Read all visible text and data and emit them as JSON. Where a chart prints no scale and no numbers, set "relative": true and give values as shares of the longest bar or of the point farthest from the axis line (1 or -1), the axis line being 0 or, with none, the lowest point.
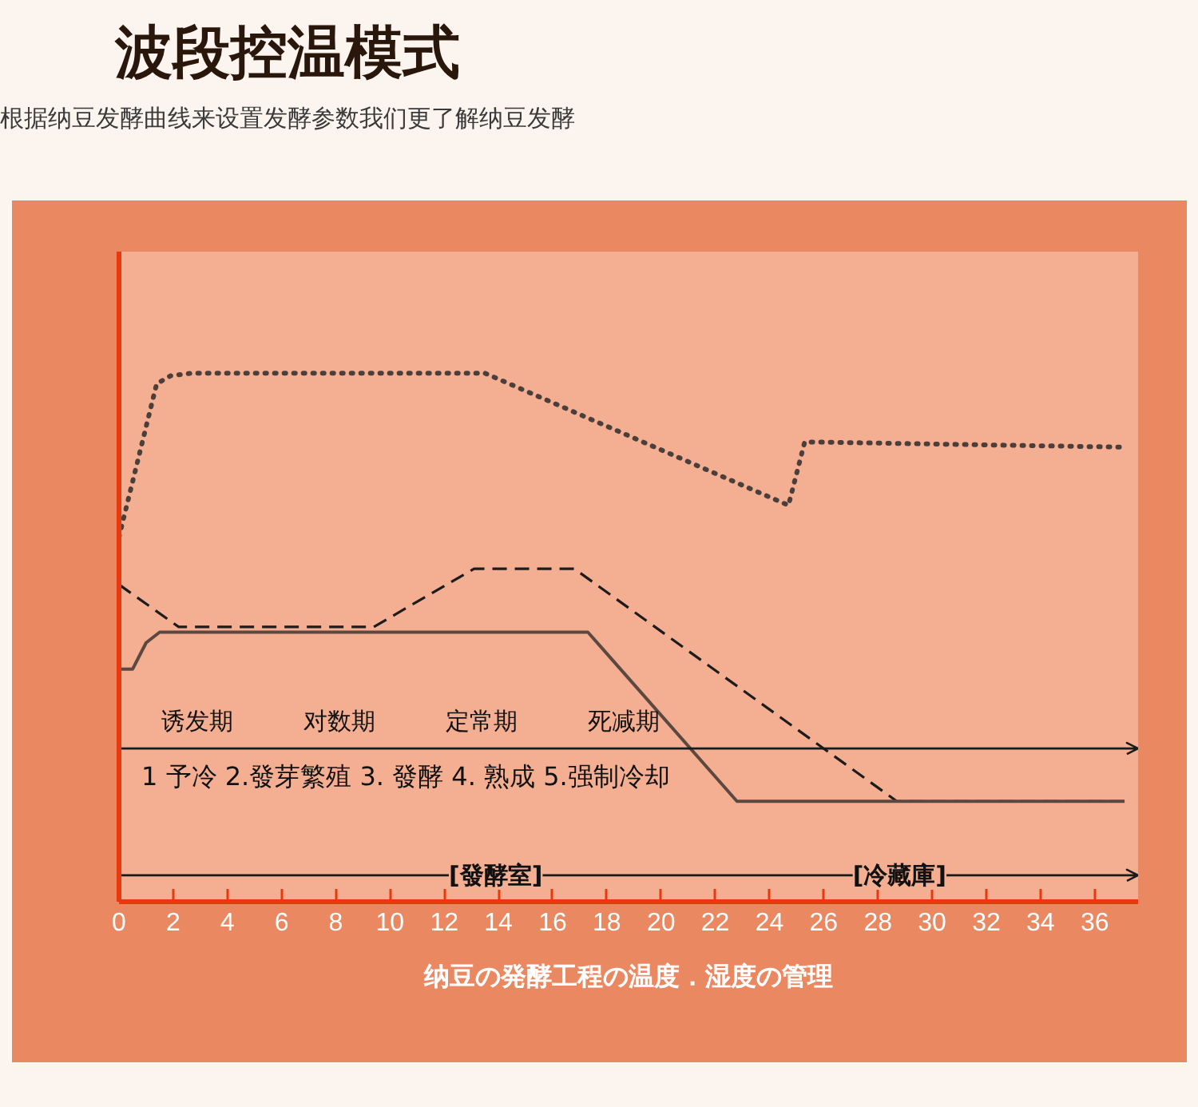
{
  "chart_data": {
    "type": "line",
    "title": "波段控温模式",
    "subtitle": "根据纳豆发酵曲线来设置发酵参数我们更了解纳豆发酵",
    "xlabel": "纳豆の発酵工程の温度．湿度の管理",
    "relative": true,
    "xlim": [
      0,
      37.6
    ],
    "xticks": [
      0,
      2,
      4,
      6,
      8,
      10,
      12,
      14,
      16,
      18,
      20,
      22,
      24,
      26,
      28,
      30,
      32,
      34,
      36
    ],
    "series": [
      {
        "color": "#4a3f3a",
        "line_style": "dotted",
        "x": [
          0,
          1.39,
          1.9,
          2.7,
          13.5,
          24.7,
          25.3,
          37.1
        ],
        "values": [
          0.69,
          0.98,
          0.995,
          1,
          1,
          0.75,
          0.87,
          0.86
        ]
      },
      {
        "color": "#1c1c1c",
        "line_style": "dashed",
        "x": [
          0,
          2.2,
          9.4,
          13.1,
          16.8,
          28.7,
          37.1
        ],
        "values": [
          0.6,
          0.52,
          0.52,
          0.63,
          0.63,
          0.19,
          0.19
        ]
      },
      {
        "color": "#5c4840",
        "line_style": "solid",
        "x": [
          0,
          0.5,
          1.0,
          1.5,
          17.3,
          22.8,
          37.1
        ],
        "values": [
          0.44,
          0.44,
          0.49,
          0.51,
          0.51,
          0.19,
          0.19
        ]
      }
    ],
    "ref_lines": [
      {
        "axis": "y",
        "value": 0.29,
        "color": "#1a1a1a"
      },
      {
        "axis": "y",
        "value": 0.05,
        "color": "#1a1a1a"
      }
    ],
    "annotations": [
      "诱发期",
      "对数期",
      "定常期",
      "死减期",
      "1 予冷 2.發芽繁殖 3. 發酵 4. 熟成 5.强制冷却",
      {
        "text": "[發酵室]",
        "x": 13.9,
        "y": 0.05
      },
      {
        "text": "[冷藏庫]",
        "x": 28.8,
        "y": 0.05
      }
    ]
  }
}
